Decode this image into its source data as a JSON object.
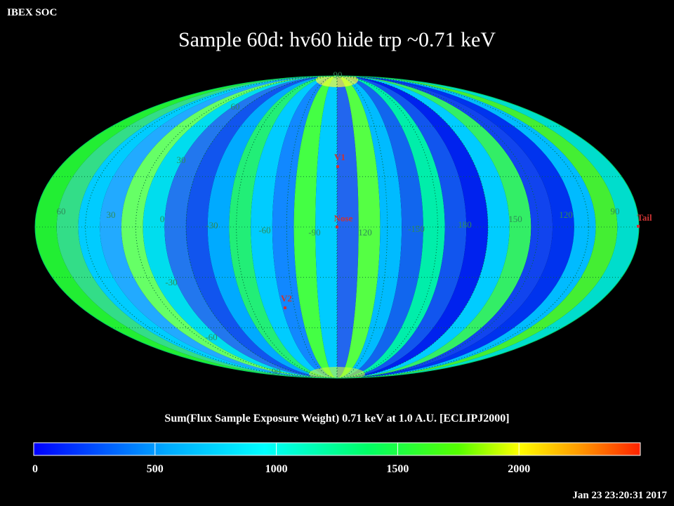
{
  "header": {
    "corner_label": "IBEX SOC",
    "title": "Sample 60d: hv60 hide trp ~0.71 keV"
  },
  "chart_data": {
    "type": "heatmap",
    "projection": "Aitoff (full sky ellipse)",
    "frame": "ECLIPJ2000",
    "title": "Sample 60d: hv60 hide trp ~0.71 keV",
    "longitude_labels": [
      "60",
      "30",
      "0",
      "-30",
      "-60",
      "-90",
      "120",
      "-150",
      "180",
      "150",
      "120",
      "90"
    ],
    "latitude_labels": {
      "top": "90",
      "upper": "60",
      "mid_upper": "30",
      "lower": "-30",
      "bottom_mid": "-60",
      "bottom": "-90"
    },
    "markers": [
      {
        "name": "V1",
        "color": "#cc3333"
      },
      {
        "name": "Nose",
        "color": "#cc3333"
      },
      {
        "name": "V2",
        "color": "#cc3333"
      },
      {
        "name": "Tail",
        "color": "#cc3333"
      }
    ],
    "colorbar": {
      "label": "Sum(Flux Sample Exposure Weight)  0.71 keV at 1.0 A.U. [ECLIPJ2000]",
      "ticks": [
        "0",
        "500",
        "1000",
        "1500",
        "2000"
      ],
      "range": [
        0,
        2500
      ],
      "colors": [
        "#0000ff",
        "#00ffff",
        "#00ff00",
        "#ffff00",
        "#ff0000"
      ]
    },
    "grid": true
  },
  "footer": {
    "timestamp": "Jan 23 23:20:31 2017"
  }
}
